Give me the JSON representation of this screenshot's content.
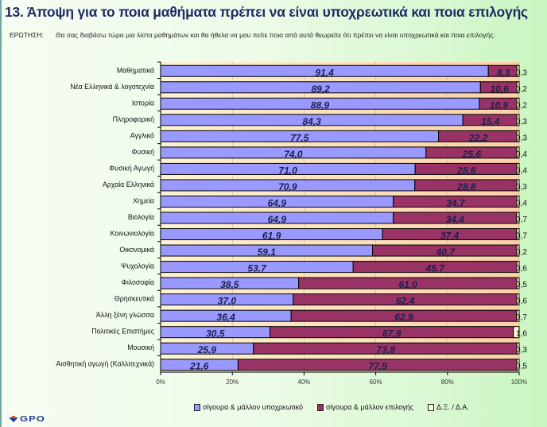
{
  "page": {
    "title": "13.  Άποψη για το ποια μαθήματα πρέπει να είναι υποχρεωτικά και ποια επιλογής",
    "question_label": "ΕΡΩΤΗΣΗ:",
    "question_text": "Θα σας διαβάσω τώρα μια λίστα μαθημάτων και θα ήθελα να μου πείτε ποια από αυτά θεωρείτε ότι πρέπει  να είναι  υποχρεωτικά και ποια επιλογής:",
    "logo_text": "GPO"
  },
  "colors": {
    "compulsory": "#9999ff",
    "elective": "#993366",
    "dk": "#ffffcc",
    "plot_bg_left": "#fdf3d2",
    "plot_bg_right": "#fbd0a6",
    "label_text": "#1a1f4d"
  },
  "chart_data": {
    "type": "bar",
    "orientation": "horizontal",
    "stacked": "percent",
    "title": "Άποψη για το ποια μαθήματα πρέπει να είναι υποχρεωτικά και ποια επιλογής",
    "xlabel": "",
    "ylabel": "",
    "xlim": [
      0,
      100
    ],
    "x_ticks": [
      "0%",
      "20%",
      "40%",
      "60%",
      "80%",
      "100%"
    ],
    "grid": "vertical",
    "legend_position": "bottom",
    "categories": [
      "Μαθηματικά",
      "Νέα Ελληνικά & λογοτεχνία",
      "Ιστορία",
      "Πληροφορική",
      "Αγγλικά",
      "Φυσική",
      "Φυσική Αγωγή",
      "Αρχαία Ελληνικά",
      "Χημεία",
      "Βιολογία",
      "Κοινωνιολογία",
      "Οικονομικά",
      "Ψυχολογία",
      "Φιλοσοφία",
      "Θρησκευτικά",
      "Άλλη ξένη γλώσσα",
      "Πολιτικές Επιστήμες",
      "Μουσική",
      "Αισθητική αγωγή (Καλλιτεχνικά)"
    ],
    "series": [
      {
        "name": "σίγουρα & μάλλον υποχρεωτικό",
        "values": [
          91.4,
          89.2,
          88.9,
          84.3,
          77.5,
          74.0,
          71.0,
          70.9,
          64.9,
          64.9,
          61.9,
          59.1,
          53.7,
          38.5,
          37.0,
          36.4,
          30.5,
          25.9,
          21.6
        ],
        "labels": [
          "91,4",
          "89,2",
          "88,9",
          "84,3",
          "77,5",
          "74,0",
          "71,0",
          "70,9",
          "64,9",
          "64,9",
          "61,9",
          "59,1",
          "53,7",
          "38,5",
          "37,0",
          "36,4",
          "30,5",
          "25,9",
          "21,6"
        ]
      },
      {
        "name": "σίγουρα & μάλλον επιλογής",
        "values": [
          8.3,
          10.6,
          10.9,
          15.4,
          22.2,
          25.6,
          28.6,
          28.8,
          34.7,
          34.4,
          37.4,
          40.7,
          45.7,
          61.0,
          62.4,
          62.9,
          67.9,
          73.8,
          77.9
        ],
        "labels": [
          "8,3",
          "10,6",
          "10,9",
          "15,4",
          "22,2",
          "25,6",
          "28,6",
          "28,8",
          "34,7",
          "34,4",
          "37,4",
          "40,7",
          "45,7",
          "61,0",
          "62,4",
          "62,9",
          "67,9",
          "73,8",
          "77,9"
        ]
      },
      {
        "name": "Δ.Ξ. / Δ.Α.",
        "values": [
          0.3,
          0.2,
          0.2,
          0.3,
          0.3,
          0.4,
          0.4,
          0.3,
          0.4,
          0.7,
          0.7,
          0.2,
          0.6,
          0.5,
          0.6,
          0.7,
          1.6,
          0.3,
          0.5
        ],
        "labels": [
          "0,3",
          "0,2",
          "0,2",
          "0,3",
          "0,3",
          "0,4",
          "0,4",
          "0,3",
          "0,4",
          "0,7",
          "0,7",
          "0,2",
          "0,6",
          "0,5",
          "0,6",
          "0,7",
          "1,6",
          "0,3",
          "0,5"
        ]
      }
    ]
  },
  "legend": {
    "items": [
      {
        "label": "σίγουρα & μάλλον υποχρεωτικό",
        "color": "#9999ff"
      },
      {
        "label": "σίγουρα & μάλλον επιλογής",
        "color": "#993366"
      },
      {
        "label": "Δ.Ξ. / Δ.Α.",
        "color": "#ffffcc"
      }
    ]
  }
}
